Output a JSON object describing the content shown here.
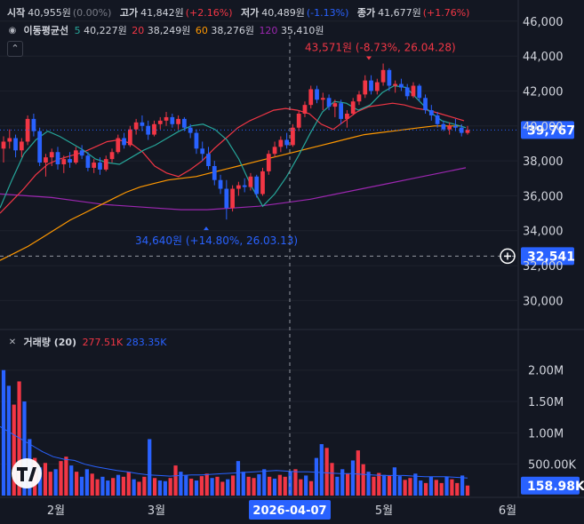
{
  "header": {
    "open_label": "시작",
    "open_value": "40,955원",
    "open_change": "(0.00%)",
    "high_label": "고가",
    "high_value": "41,842원",
    "high_change": "(+2.16%)",
    "low_label": "저가",
    "low_value": "40,489원",
    "low_change": "(-1.13%)",
    "close_label": "종가",
    "close_value": "41,677원",
    "close_change": "(+1.76%)"
  },
  "ma_legend": {
    "label": "이동평균선",
    "items": [
      {
        "period": "5",
        "value": "40,227원",
        "color": "#26a69a"
      },
      {
        "period": "20",
        "value": "38,249원",
        "color": "#f23645"
      },
      {
        "period": "60",
        "value": "38,276원",
        "color": "#ff9800"
      },
      {
        "period": "120",
        "value": "35,410원",
        "color": "#9c27b0"
      }
    ]
  },
  "volume_legend": {
    "label": "거래량 (20)",
    "value_up": "277.51K",
    "value_down": "283.35K"
  },
  "icons": {
    "eye": "eye-icon",
    "close": "close-icon",
    "collapse": "chevron-up-icon",
    "add": "plus-circle-icon",
    "logo": "tradingview-logo"
  },
  "colors": {
    "up": "#f23645",
    "down": "#2962ff",
    "background": "#131722",
    "price_badge": "#2962ff"
  },
  "chart_data": [
    {
      "type": "candlestick",
      "y_axis_ticks": [
        "46,000",
        "44,000",
        "42,000",
        "40,000",
        "38,000",
        "36,000",
        "34,000",
        "32,000",
        "30,000"
      ],
      "y_axis_values": [
        46000,
        44000,
        42000,
        40000,
        38000,
        36000,
        34000,
        32000,
        30000
      ],
      "ylim": [
        28800,
        46700
      ],
      "current_price_label": "39,767",
      "current_price": 39767,
      "crosshair_price_label": "32,541",
      "crosshair_price": 32541,
      "annotations": [
        {
          "text": "43,571원 (-8.73%, 26.04.28)",
          "price": 43571,
          "color": "#f23645"
        },
        {
          "text": "34,640원 (+14.80%, 26.03.13)",
          "price": 34640,
          "color": "#2962ff"
        }
      ],
      "ohlc": [
        [
          38700,
          39400,
          37900,
          39100
        ],
        [
          39100,
          39800,
          38700,
          39300
        ],
        [
          39300,
          39500,
          38200,
          38600
        ],
        [
          38600,
          39300,
          38200,
          39100
        ],
        [
          39100,
          40600,
          38900,
          40400
        ],
        [
          40400,
          40700,
          39400,
          39700
        ],
        [
          39700,
          39900,
          37700,
          37900
        ],
        [
          37900,
          38400,
          37100,
          38200
        ],
        [
          38200,
          38700,
          37700,
          38500
        ],
        [
          38500,
          38800,
          37500,
          37800
        ],
        [
          37800,
          38300,
          37300,
          38100
        ],
        [
          38100,
          38500,
          37600,
          37900
        ],
        [
          37900,
          38800,
          37800,
          38600
        ],
        [
          38600,
          38900,
          38100,
          38300
        ],
        [
          38300,
          38500,
          37400,
          37600
        ],
        [
          37600,
          38100,
          37300,
          37900
        ],
        [
          37900,
          38200,
          37200,
          37500
        ],
        [
          37500,
          38300,
          37400,
          38100
        ],
        [
          38100,
          38700,
          37900,
          38500
        ],
        [
          38500,
          39500,
          38400,
          39300
        ],
        [
          39300,
          39600,
          38700,
          38900
        ],
        [
          38900,
          40000,
          38800,
          39800
        ],
        [
          39800,
          40400,
          39500,
          40200
        ],
        [
          40200,
          40600,
          39700,
          40000
        ],
        [
          40000,
          40300,
          39200,
          39500
        ],
        [
          39500,
          40300,
          39400,
          40100
        ],
        [
          40100,
          40500,
          39800,
          40300
        ],
        [
          40300,
          40800,
          40000,
          40500
        ],
        [
          40500,
          40700,
          39900,
          40100
        ],
        [
          40100,
          40600,
          39800,
          40400
        ],
        [
          40400,
          40500,
          39700,
          39900
        ],
        [
          39900,
          40100,
          39300,
          39600
        ],
        [
          39600,
          39800,
          38400,
          38700
        ],
        [
          38700,
          39100,
          38000,
          38400
        ],
        [
          38400,
          38800,
          37500,
          37700
        ],
        [
          37700,
          38000,
          36600,
          36900
        ],
        [
          36900,
          37200,
          36100,
          36400
        ],
        [
          36400,
          36900,
          34640,
          35300
        ],
        [
          35300,
          36600,
          35100,
          36400
        ],
        [
          36400,
          36800,
          36000,
          36600
        ],
        [
          36600,
          37000,
          36200,
          36500
        ],
        [
          36500,
          37300,
          36300,
          37100
        ],
        [
          37100,
          37200,
          35900,
          36100
        ],
        [
          36100,
          37600,
          36000,
          37400
        ],
        [
          37400,
          38600,
          37200,
          38400
        ],
        [
          38400,
          39100,
          38200,
          38800
        ],
        [
          38800,
          39400,
          38500,
          39200
        ],
        [
          39200,
          39600,
          38700,
          38900
        ],
        [
          38900,
          40100,
          38800,
          39900
        ],
        [
          39900,
          40900,
          39700,
          40700
        ],
        [
          40700,
          41400,
          40500,
          41200
        ],
        [
          41200,
          42300,
          41000,
          42100
        ],
        [
          42100,
          42300,
          41300,
          41500
        ],
        [
          41500,
          41900,
          40900,
          41600
        ],
        [
          41600,
          41800,
          40900,
          41100
        ],
        [
          41100,
          41500,
          40500,
          41300
        ],
        [
          41300,
          41500,
          40100,
          40400
        ],
        [
          40400,
          40900,
          39900,
          40700
        ],
        [
          40700,
          41600,
          40600,
          41400
        ],
        [
          41400,
          42000,
          41200,
          41800
        ],
        [
          41800,
          42900,
          41600,
          42600
        ],
        [
          42600,
          42900,
          41800,
          42000
        ],
        [
          42000,
          42700,
          41800,
          42500
        ],
        [
          42500,
          43571,
          42300,
          43200
        ],
        [
          43200,
          43300,
          42000,
          42300
        ],
        [
          42300,
          42600,
          41900,
          42400
        ],
        [
          42400,
          42700,
          42000,
          42200
        ],
        [
          42200,
          42400,
          41500,
          41700
        ],
        [
          41700,
          42500,
          41600,
          42300
        ],
        [
          42300,
          42400,
          41400,
          41600
        ],
        [
          41600,
          41800,
          40700,
          40900
        ],
        [
          40900,
          41200,
          40300,
          40600
        ],
        [
          40600,
          40800,
          39900,
          40100
        ],
        [
          40100,
          40300,
          39700,
          39800
        ],
        [
          39800,
          40200,
          39500,
          40000
        ],
        [
          40000,
          40400,
          39700,
          39900
        ],
        [
          39900,
          40100,
          39400,
          39600
        ],
        [
          39600,
          40000,
          39500,
          39767
        ]
      ],
      "ma5": [
        35300,
        36900,
        38400,
        39200,
        39700,
        39400,
        39000,
        38600,
        38100,
        37900,
        37800,
        38200,
        38600,
        38900,
        39300,
        39700,
        40000,
        40100,
        39800,
        39200,
        38100,
        36600,
        35400,
        36100,
        37100,
        38300,
        39600,
        40800,
        41400,
        41300,
        40900,
        41200,
        41900,
        42300,
        42200,
        41500,
        40800,
        40300,
        40100,
        39900
      ],
      "ma20": [
        35000,
        35700,
        36400,
        37200,
        37800,
        38100,
        38300,
        38500,
        38800,
        39100,
        39200,
        39000,
        38500,
        37700,
        37300,
        37100,
        37500,
        38000,
        38700,
        39300,
        39900,
        40300,
        40600,
        40900,
        41000,
        40900,
        40700,
        40100,
        39800,
        40300,
        40800,
        41100,
        41200,
        41300,
        41200,
        41000,
        40900,
        40700,
        40500,
        40300
      ],
      "ma60": [
        32300,
        32700,
        33100,
        33600,
        34100,
        34600,
        35000,
        35400,
        35800,
        36200,
        36500,
        36700,
        36900,
        37000,
        37100,
        37300,
        37500,
        37700,
        37900,
        38100,
        38300,
        38500,
        38700,
        38900,
        39100,
        39300,
        39500,
        39600,
        39700,
        39800,
        39900,
        40000,
        40000,
        40000
      ],
      "ma120": [
        36100,
        36000,
        35900,
        35700,
        35500,
        35400,
        35300,
        35200,
        35200,
        35300,
        35400,
        35600,
        35800,
        36100,
        36400,
        36700,
        37000,
        37300,
        37600
      ]
    },
    {
      "type": "bar",
      "title": "거래량 (20)",
      "y_axis_ticks": [
        "2.00M",
        "1.50M",
        "1.00M",
        "500.00K"
      ],
      "y_axis_values": [
        2000000,
        1500000,
        1000000,
        500000
      ],
      "ylim": [
        0,
        2350000
      ],
      "current_volume_label": "158.98K",
      "current_volume": 158980,
      "values": [
        2000000,
        1750000,
        1450000,
        1820000,
        1500000,
        900000,
        600000,
        450000,
        520000,
        380000,
        420000,
        550000,
        620000,
        480000,
        380000,
        300000,
        420000,
        350000,
        260000,
        300000,
        240000,
        280000,
        330000,
        300000,
        380000,
        260000,
        220000,
        300000,
        900000,
        280000,
        240000,
        230000,
        280000,
        480000,
        380000,
        320000,
        270000,
        240000,
        310000,
        350000,
        280000,
        300000,
        220000,
        260000,
        320000,
        550000,
        380000,
        300000,
        280000,
        340000,
        420000,
        300000,
        270000,
        330000,
        300000,
        390000,
        420000,
        260000,
        320000,
        230000,
        600000,
        820000,
        760000,
        520000,
        300000,
        420000,
        350000,
        560000,
        720000,
        500000,
        380000,
        300000,
        360000,
        330000,
        320000,
        450000,
        310000,
        250000,
        280000,
        350000,
        240000,
        200000,
        300000,
        250000,
        200000,
        300000,
        260000,
        200000,
        320000,
        160000
      ],
      "ma20": [
        1100000,
        1000000,
        900000,
        800000,
        700000,
        620000,
        580000,
        560000,
        500000,
        460000,
        430000,
        400000,
        380000,
        350000,
        330000,
        320000,
        310000,
        320000,
        330000,
        330000,
        340000,
        350000,
        360000,
        370000,
        380000,
        390000,
        400000,
        390000,
        380000,
        380000,
        370000,
        360000,
        350000,
        350000,
        340000,
        330000,
        320000,
        320000,
        320000,
        310000,
        300000,
        300000,
        300000,
        290000,
        280000
      ]
    }
  ],
  "x_axis": {
    "labels": [
      {
        "text": "2월",
        "pos": 0.0
      },
      {
        "text": "3월",
        "pos": 1.0
      },
      {
        "text": "5월",
        "pos": 3.0
      },
      {
        "text": "6월",
        "pos": 4.0
      }
    ],
    "crosshair_label": "2026-04-07"
  }
}
